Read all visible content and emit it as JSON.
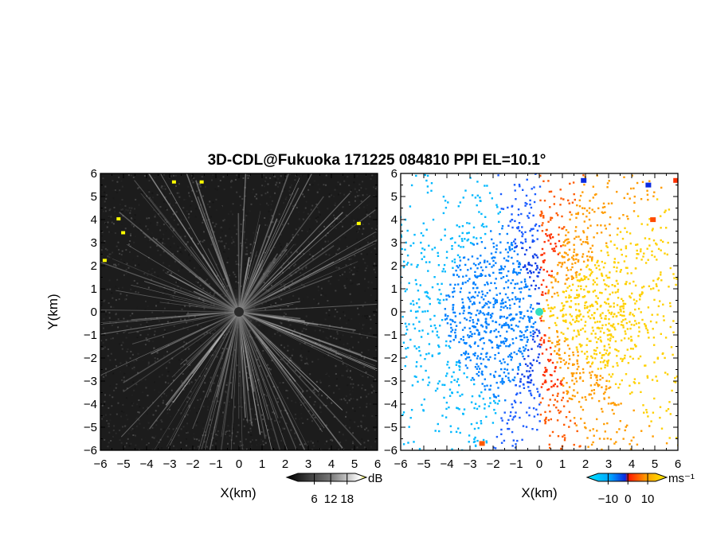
{
  "title": "3D-CDL@Fukuoka 171225 084810 PPI EL=10.1°",
  "chart_data": [
    {
      "type": "heatmap",
      "quantity": "reflectivity",
      "xlabel": "X(km)",
      "ylabel": "Y(km)",
      "xlim": [
        -6,
        6
      ],
      "ylim": [
        -6,
        6
      ],
      "xticks": [
        -6,
        -5,
        -4,
        -3,
        -2,
        -1,
        0,
        1,
        2,
        3,
        4,
        5,
        6
      ],
      "yticks": [
        -6,
        -5,
        -4,
        -3,
        -2,
        -1,
        0,
        1,
        2,
        3,
        4,
        5,
        6
      ],
      "colorbar": {
        "unit": "dB",
        "ticks": [
          6,
          12,
          18
        ],
        "colors": [
          "#000000",
          "#ffffff",
          "#ffff00"
        ]
      }
    },
    {
      "type": "heatmap",
      "quantity": "doppler velocity",
      "xlabel": "X(km)",
      "xlim": [
        -6,
        6
      ],
      "ylim": [
        -6,
        6
      ],
      "xticks": [
        -6,
        -5,
        -4,
        -3,
        -2,
        -1,
        0,
        1,
        2,
        3,
        4,
        5,
        6
      ],
      "yticks": [
        -6,
        -5,
        -4,
        -3,
        -2,
        -1,
        0,
        1,
        2,
        3,
        4,
        5,
        6
      ],
      "colorbar": {
        "unit": "ms⁻¹",
        "ticks": [
          -10,
          0,
          10
        ],
        "colors": [
          "#00d8ff",
          "#0a2ae0",
          "#ff2000",
          "#ffd000",
          "#fff000"
        ]
      }
    }
  ]
}
